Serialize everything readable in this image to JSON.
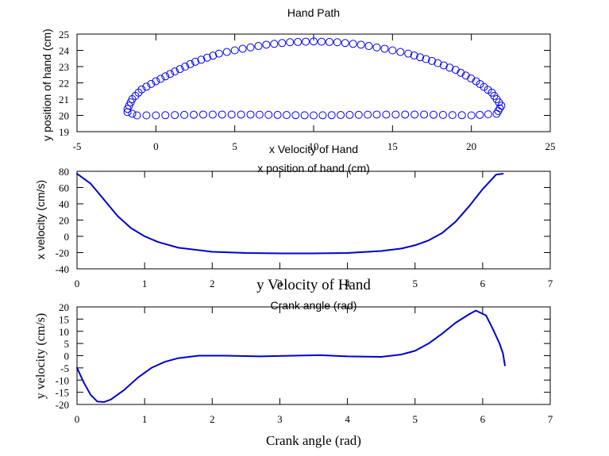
{
  "chart_data": [
    {
      "type": "scatter",
      "title": "Hand Path",
      "xlabel": "x position of hand (cm)",
      "ylabel": "y position of hand (cm)",
      "xlim": [
        -5,
        25
      ],
      "ylim": [
        19,
        25
      ],
      "xticks": [
        "-5",
        "0",
        "5",
        "10",
        "15",
        "20",
        "25"
      ],
      "yticks": [
        "19",
        "20",
        "21",
        "22",
        "23",
        "24",
        "25"
      ],
      "marker": "open-circle",
      "color": "#0000ff",
      "path_points": [
        [
          -1.8,
          20.4
        ],
        [
          -1.5,
          21.0
        ],
        [
          -0.9,
          21.6
        ],
        [
          0,
          22.1
        ],
        [
          1.2,
          22.7
        ],
        [
          2.5,
          23.3
        ],
        [
          4,
          23.8
        ],
        [
          5.5,
          24.1
        ],
        [
          7,
          24.35
        ],
        [
          8.5,
          24.5
        ],
        [
          10,
          24.55
        ],
        [
          11.5,
          24.5
        ],
        [
          13,
          24.35
        ],
        [
          14.5,
          24.1
        ],
        [
          16,
          23.8
        ],
        [
          17.5,
          23.35
        ],
        [
          19,
          22.8
        ],
        [
          20.3,
          22.1
        ],
        [
          21.3,
          21.4
        ],
        [
          21.9,
          20.6
        ],
        [
          21.6,
          20.1
        ],
        [
          20,
          20.0
        ],
        [
          17,
          20.05
        ],
        [
          14,
          20.05
        ],
        [
          10,
          20.0
        ],
        [
          6,
          20.05
        ],
        [
          3,
          20.05
        ],
        [
          0,
          20.0
        ],
        [
          -1.2,
          20.0
        ],
        [
          -1.8,
          20.2
        ]
      ]
    },
    {
      "type": "line",
      "title": "x Velocity of Hand",
      "xlabel": "Crank angle (rad)",
      "ylabel": "x velocity (cm/s)",
      "xlim": [
        0,
        7
      ],
      "ylim": [
        -40,
        80
      ],
      "xticks": [
        "0",
        "1",
        "2",
        "3",
        "4",
        "5",
        "6",
        "7"
      ],
      "yticks": [
        "-40",
        "-20",
        "0",
        "20",
        "40",
        "60",
        "80"
      ],
      "color": "#0000cc",
      "x": [
        0,
        0.2,
        0.4,
        0.6,
        0.8,
        1.0,
        1.2,
        1.5,
        2.0,
        2.5,
        3.0,
        3.5,
        4.0,
        4.5,
        4.8,
        5.0,
        5.2,
        5.4,
        5.6,
        5.8,
        6.0,
        6.2,
        6.3
      ],
      "values": [
        77,
        65,
        45,
        25,
        10,
        0,
        -7,
        -14,
        -19,
        -20.5,
        -21,
        -21,
        -20.5,
        -18,
        -15,
        -11,
        -5,
        4,
        18,
        37,
        58,
        76,
        77
      ]
    },
    {
      "type": "line",
      "title": "y Velocity of Hand",
      "xlabel": "Crank angle (rad)",
      "ylabel": "y velocity (cm/s)",
      "xlim": [
        0,
        7
      ],
      "ylim": [
        -20,
        20
      ],
      "xticks": [
        "0",
        "1",
        "2",
        "3",
        "4",
        "5",
        "6",
        "7"
      ],
      "yticks": [
        "-20",
        "-15",
        "-10",
        "-5",
        "0",
        "5",
        "10",
        "15",
        "20"
      ],
      "color": "#0000cc",
      "x": [
        0,
        0.1,
        0.2,
        0.3,
        0.4,
        0.5,
        0.7,
        0.9,
        1.1,
        1.3,
        1.5,
        1.8,
        2.2,
        2.7,
        3.2,
        3.6,
        4.0,
        4.5,
        4.8,
        5.0,
        5.2,
        5.4,
        5.6,
        5.8,
        5.9,
        6.05,
        6.15,
        6.25,
        6.3,
        6.33
      ],
      "values": [
        -5,
        -11,
        -16,
        -18.8,
        -19,
        -18,
        -14,
        -9,
        -5,
        -2.5,
        -1,
        0,
        0,
        -0.3,
        0,
        0.2,
        -0.3,
        -0.5,
        0.5,
        2,
        5,
        9,
        13.5,
        17,
        18.5,
        16.5,
        11,
        5,
        1,
        -4
      ]
    }
  ]
}
